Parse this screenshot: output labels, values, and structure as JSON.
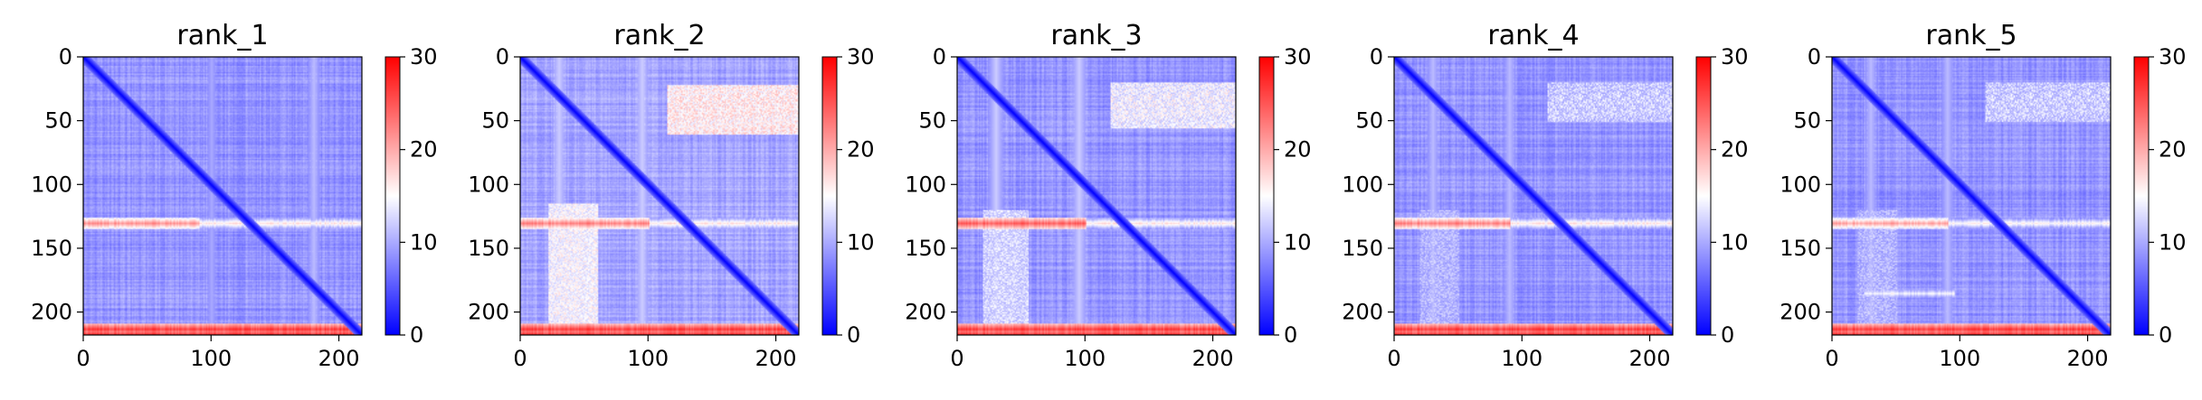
{
  "chart_data": {
    "type": "heatmap",
    "colormap": [
      "#0000ff",
      "#ffffff",
      "#ff0000"
    ],
    "colorbar": {
      "range": [
        0,
        30
      ],
      "ticks": [
        0,
        10,
        20,
        30
      ]
    },
    "x_ticks": [
      0,
      100,
      200
    ],
    "y_ticks": [
      0,
      50,
      100,
      150,
      200
    ],
    "matrix_size": 218,
    "panels": [
      {
        "title": "rank_1",
        "base": 6,
        "row_bands": [
          {
            "center": 130,
            "width": 4,
            "value": 23,
            "from": 0,
            "to": 90
          },
          {
            "center": 130,
            "width": 4,
            "value": 18,
            "from": 90,
            "to": 218
          },
          {
            "center": 213,
            "width": 4,
            "value": 28,
            "from": 0,
            "to": 218
          },
          {
            "center": 218,
            "width": 3,
            "value": 30,
            "from": 0,
            "to": 218
          }
        ],
        "col_bands": [
          {
            "center": 100,
            "width": 4,
            "value": 10
          },
          {
            "center": 180,
            "width": 4,
            "value": 11
          }
        ],
        "blocks": []
      },
      {
        "title": "rank_2",
        "base": 7,
        "row_bands": [
          {
            "center": 130,
            "width": 4,
            "value": 24,
            "from": 0,
            "to": 100
          },
          {
            "center": 130,
            "width": 4,
            "value": 18,
            "from": 100,
            "to": 218
          },
          {
            "center": 213,
            "width": 4,
            "value": 28,
            "from": 0,
            "to": 218
          },
          {
            "center": 218,
            "width": 3,
            "value": 30,
            "from": 0,
            "to": 218
          }
        ],
        "col_bands": [
          {
            "center": 30,
            "width": 6,
            "value": 12
          },
          {
            "center": 95,
            "width": 6,
            "value": 12
          }
        ],
        "blocks": [
          {
            "r0": 22,
            "r1": 60,
            "c0": 115,
            "c1": 218,
            "value": 17
          }
        ]
      },
      {
        "title": "rank_3",
        "base": 6,
        "row_bands": [
          {
            "center": 130,
            "width": 4,
            "value": 26,
            "from": 0,
            "to": 100
          },
          {
            "center": 130,
            "width": 4,
            "value": 18,
            "from": 100,
            "to": 218
          },
          {
            "center": 213,
            "width": 4,
            "value": 28,
            "from": 0,
            "to": 218
          },
          {
            "center": 218,
            "width": 3,
            "value": 30,
            "from": 0,
            "to": 218
          }
        ],
        "col_bands": [
          {
            "center": 30,
            "width": 6,
            "value": 12
          },
          {
            "center": 95,
            "width": 6,
            "value": 12
          }
        ],
        "blocks": [
          {
            "r0": 20,
            "r1": 55,
            "c0": 120,
            "c1": 218,
            "value": 15
          }
        ]
      },
      {
        "title": "rank_4",
        "base": 6,
        "row_bands": [
          {
            "center": 130,
            "width": 4,
            "value": 24,
            "from": 0,
            "to": 90
          },
          {
            "center": 130,
            "width": 4,
            "value": 18,
            "from": 90,
            "to": 218
          },
          {
            "center": 213,
            "width": 4,
            "value": 28,
            "from": 0,
            "to": 218
          },
          {
            "center": 218,
            "width": 3,
            "value": 30,
            "from": 0,
            "to": 218
          }
        ],
        "col_bands": [
          {
            "center": 30,
            "width": 6,
            "value": 11
          },
          {
            "center": 90,
            "width": 6,
            "value": 11
          }
        ],
        "blocks": [
          {
            "r0": 20,
            "r1": 50,
            "c0": 120,
            "c1": 218,
            "value": 13
          }
        ]
      },
      {
        "title": "rank_5",
        "base": 6,
        "row_bands": [
          {
            "center": 130,
            "width": 4,
            "value": 22,
            "from": 0,
            "to": 90
          },
          {
            "center": 130,
            "width": 4,
            "value": 17,
            "from": 90,
            "to": 218
          },
          {
            "center": 185,
            "width": 5,
            "value": 16,
            "from": 25,
            "to": 95
          },
          {
            "center": 213,
            "width": 4,
            "value": 28,
            "from": 0,
            "to": 218
          },
          {
            "center": 218,
            "width": 3,
            "value": 30,
            "from": 0,
            "to": 218
          }
        ],
        "col_bands": [
          {
            "center": 30,
            "width": 6,
            "value": 11
          },
          {
            "center": 90,
            "width": 6,
            "value": 11
          }
        ],
        "blocks": [
          {
            "r0": 20,
            "r1": 50,
            "c0": 120,
            "c1": 218,
            "value": 13
          }
        ]
      }
    ]
  }
}
